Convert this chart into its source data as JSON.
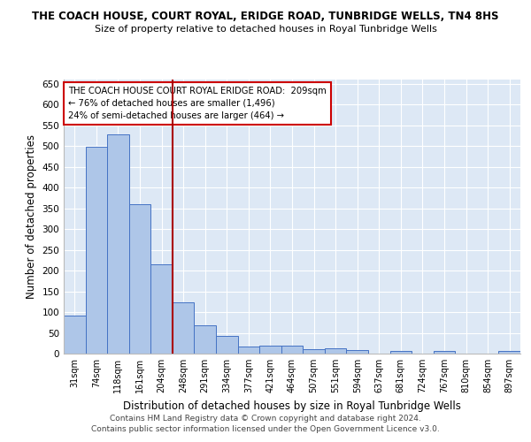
{
  "title": "THE COACH HOUSE, COURT ROYAL, ERIDGE ROAD, TUNBRIDGE WELLS, TN4 8HS",
  "subtitle": "Size of property relative to detached houses in Royal Tunbridge Wells",
  "xlabel": "Distribution of detached houses by size in Royal Tunbridge Wells",
  "ylabel": "Number of detached properties",
  "footnote1": "Contains HM Land Registry data © Crown copyright and database right 2024.",
  "footnote2": "Contains public sector information licensed under the Open Government Licence v3.0.",
  "categories": [
    "31sqm",
    "74sqm",
    "118sqm",
    "161sqm",
    "204sqm",
    "248sqm",
    "291sqm",
    "334sqm",
    "377sqm",
    "421sqm",
    "464sqm",
    "507sqm",
    "551sqm",
    "594sqm",
    "637sqm",
    "681sqm",
    "724sqm",
    "767sqm",
    "810sqm",
    "854sqm",
    "897sqm"
  ],
  "values": [
    92,
    499,
    529,
    360,
    214,
    123,
    69,
    43,
    16,
    20,
    20,
    11,
    13,
    8,
    0,
    6,
    0,
    6,
    0,
    0,
    6
  ],
  "bar_color": "#aec6e8",
  "bar_edge_color": "#4472c4",
  "background_color": "#dde8f5",
  "grid_color": "#ffffff",
  "vline_x": 4.5,
  "vline_color": "#aa0000",
  "annotation_text": "THE COACH HOUSE COURT ROYAL ERIDGE ROAD:  209sqm\n← 76% of detached houses are smaller (1,496)\n24% of semi-detached houses are larger (464) →",
  "annotation_box_color": "#ffffff",
  "annotation_box_edge": "#cc0000",
  "ylim": [
    0,
    660
  ],
  "yticks": [
    0,
    50,
    100,
    150,
    200,
    250,
    300,
    350,
    400,
    450,
    500,
    550,
    600,
    650
  ]
}
